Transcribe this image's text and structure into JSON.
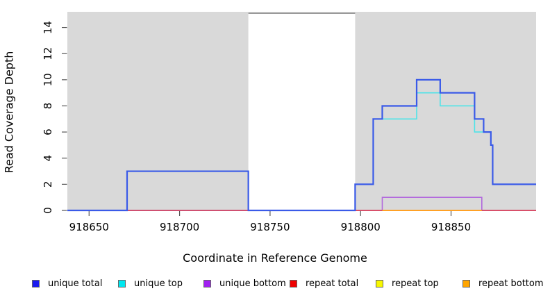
{
  "chart_data": {
    "type": "line",
    "subtype": "step-coverage-plot",
    "title": "",
    "xlabel": "Coordinate in Reference Genome",
    "ylabel": "Read Coverage Depth",
    "xlim": [
      918638,
      918897
    ],
    "ylim": [
      0,
      15.2
    ],
    "x_ticks": [
      918650,
      918700,
      918750,
      918800,
      918850
    ],
    "y_ticks": [
      0,
      2,
      4,
      6,
      8,
      10,
      12,
      14
    ],
    "grid": false,
    "panel_background": "#ffffff",
    "background_regions": [
      {
        "name": "shaded-region-left",
        "x1": 918638,
        "x2": 918738,
        "color": "#d9d9d9"
      },
      {
        "name": "shaded-region-right",
        "x1": 918797,
        "x2": 918897,
        "color": "#d9d9d9"
      }
    ],
    "gap_region": {
      "name": "uncovered-gap",
      "x1": 918738,
      "x2": 918797,
      "cap_value": 15.1,
      "cap_color": "#8d8d8d"
    },
    "series": [
      {
        "name": "unique total",
        "color": "#3a5ae8",
        "line_width": 2.2,
        "z": 6,
        "steps": [
          [
            918638,
            0
          ],
          [
            918671,
            3
          ],
          [
            918738,
            0
          ],
          [
            918797,
            2
          ],
          [
            918807,
            7
          ],
          [
            918812,
            8
          ],
          [
            918831,
            10
          ],
          [
            918844,
            9
          ],
          [
            918863,
            7
          ],
          [
            918868,
            6
          ],
          [
            918872,
            5
          ],
          [
            918873,
            2
          ],
          [
            918897,
            2
          ]
        ]
      },
      {
        "name": "unique top",
        "color": "#4ee3e8",
        "line_width": 1.6,
        "z": 2,
        "steps": [
          [
            918638,
            0
          ],
          [
            918797,
            2
          ],
          [
            918807,
            7
          ],
          [
            918831,
            9
          ],
          [
            918844,
            8
          ],
          [
            918863,
            6
          ],
          [
            918872,
            5
          ],
          [
            918873,
            2
          ],
          [
            918897,
            2
          ]
        ]
      },
      {
        "name": "unique bottom",
        "color": "#b168dd",
        "line_width": 1.6,
        "z": 3,
        "steps": [
          [
            918638,
            0
          ],
          [
            918812,
            1
          ],
          [
            918867,
            0
          ],
          [
            918897,
            0
          ]
        ]
      },
      {
        "name": "repeat total",
        "color": "#dd3355",
        "line_width": 1.6,
        "z": 4,
        "steps": [
          [
            918638,
            0
          ],
          [
            918897,
            0
          ]
        ]
      },
      {
        "name": "repeat top",
        "color": "#f2f216",
        "line_width": 1.6,
        "z": 1,
        "steps": [
          [
            918638,
            0
          ],
          [
            918897,
            0
          ]
        ]
      },
      {
        "name": "repeat bottom",
        "color": "#ffa125",
        "line_width": 2,
        "z": 5,
        "steps": [
          [
            918812,
            0
          ],
          [
            918867,
            0
          ]
        ]
      }
    ],
    "legend": {
      "position": "bottom",
      "items": [
        {
          "label": "unique total",
          "color": "#1a1aef"
        },
        {
          "label": "unique top",
          "color": "#00e8f0"
        },
        {
          "label": "unique bottom",
          "color": "#a020f0"
        },
        {
          "label": "repeat total",
          "color": "#ee0000"
        },
        {
          "label": "repeat top",
          "color": "#f8f800"
        },
        {
          "label": "repeat bottom",
          "color": "#ffa500"
        }
      ]
    }
  }
}
